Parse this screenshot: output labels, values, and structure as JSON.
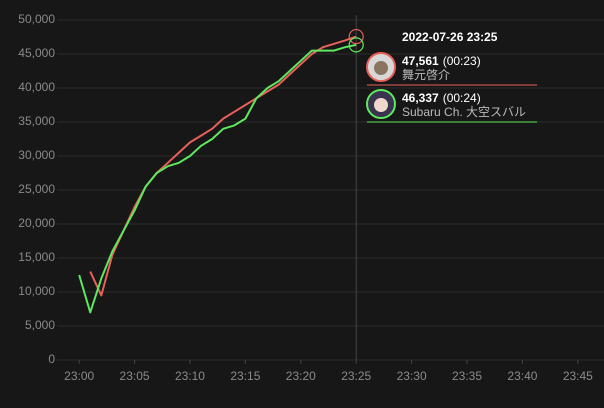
{
  "chart_data": {
    "type": "line",
    "x": [
      "23:00",
      "23:01",
      "23:02",
      "23:03",
      "23:04",
      "23:05",
      "23:06",
      "23:07",
      "23:08",
      "23:09",
      "23:10",
      "23:11",
      "23:12",
      "23:13",
      "23:14",
      "23:15",
      "23:16",
      "23:17",
      "23:18",
      "23:19",
      "23:20",
      "23:21",
      "23:22",
      "23:23",
      "23:24",
      "23:25"
    ],
    "series": [
      {
        "name": "舞元啓介",
        "color": "#e8605a",
        "values": [
          null,
          13000,
          9500,
          15500,
          19000,
          22500,
          25500,
          27500,
          29000,
          30500,
          32000,
          33000,
          34000,
          35500,
          36500,
          37500,
          38500,
          39500,
          40500,
          42000,
          43500,
          45000,
          46000,
          46500,
          47000,
          47561
        ]
      },
      {
        "name": "Subaru Ch. 大空スバル",
        "color": "#5ee85e",
        "values": [
          12500,
          7000,
          12000,
          16000,
          19000,
          22000,
          25500,
          27500,
          28500,
          29000,
          30000,
          31500,
          32500,
          34000,
          34500,
          35500,
          38500,
          40000,
          41000,
          42500,
          44000,
          45500,
          45500,
          45500,
          46000,
          46337
        ]
      }
    ],
    "xlim": [
      "22:58",
      "23:47"
    ],
    "xticks": [
      "23:00",
      "23:05",
      "23:10",
      "23:15",
      "23:20",
      "23:25",
      "23:30",
      "23:35",
      "23:40",
      "23:45"
    ],
    "ylim": [
      0,
      50000
    ],
    "yticks": [
      0,
      {
        "value": 5000,
        "label": "5,000"
      },
      {
        "value": 10000,
        "label": "10,000"
      },
      {
        "value": 15000,
        "label": "15,000"
      },
      {
        "value": 20000,
        "label": "20,000"
      },
      {
        "value": 25000,
        "label": "25,000"
      },
      {
        "value": 30000,
        "label": "30,000"
      },
      {
        "value": 35000,
        "label": "35,000"
      },
      {
        "value": 40000,
        "label": "40,000"
      },
      {
        "value": 45000,
        "label": "45,000"
      },
      {
        "value": 50000,
        "label": "50,000"
      }
    ],
    "grid": true,
    "tooltip": {
      "title": "2022-07-26 23:25",
      "x": "23:25",
      "items": [
        {
          "value_label": "47,561",
          "elapsed": "(00:23)"
        },
        {
          "value_label": "46,337",
          "elapsed": "(00:24)"
        }
      ]
    }
  }
}
